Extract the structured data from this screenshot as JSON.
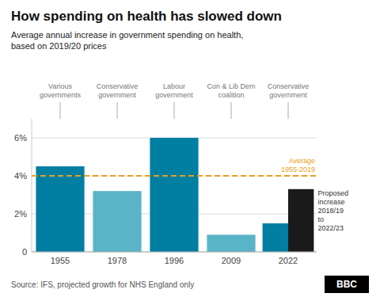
{
  "chart_data": {
    "type": "bar",
    "title": "How spending on health has slowed down",
    "subtitle": "Average annual increase in government spending on health,\nbased on 2019/20 prices",
    "categories": [
      "1955",
      "1978",
      "1996",
      "2009",
      "2022",
      null
    ],
    "values": [
      4.5,
      3.2,
      6.0,
      0.9,
      1.5,
      3.3
    ],
    "colors": [
      "#007fa3",
      "#5ab4c8",
      "#007fa3",
      "#5ab4c8",
      "#007fa3",
      "#1a1a1a"
    ],
    "ylim": [
      0,
      7.0
    ],
    "yticks": [
      0,
      {
        "value": 2,
        "label": "2%"
      },
      {
        "value": 4,
        "label": "4%"
      },
      {
        "value": 6,
        "label": "6%"
      }
    ],
    "grid": true,
    "average": {
      "value": 4.0,
      "label": "Average\n1955-2019",
      "color": "#e8a020"
    },
    "eras": [
      "Various\ngovernments",
      "Conservative\ngovernment",
      "Labour\ngovernment",
      "Con & Lib Dem\ncoalition",
      "Conservative\ngovernment",
      null
    ],
    "annotations": [
      {
        "text": "Proposed\nincrease\n2018/19\nto\n2022/23"
      }
    ],
    "source": "Source: IFS, projected growth for NHS England only",
    "credit": "BBC"
  }
}
